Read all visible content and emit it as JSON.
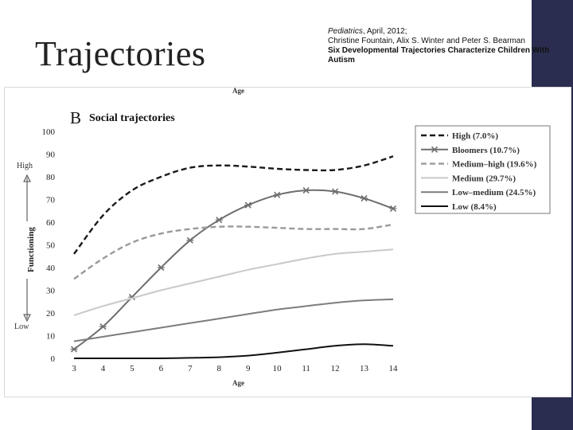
{
  "slide": {
    "title": "Trajectories",
    "citation": {
      "journal": "Pediatrics",
      "date": ", April, 2012;",
      "authors": "Christine Fountain, Alix S. Winter and Peter S. Bearman",
      "paper_title": "Six Developmental Trajectories Characterize Children With Autism"
    }
  },
  "chart_data": {
    "type": "line",
    "panel_letter": "B",
    "title": "Social trajectories",
    "top_axis_label": "Age",
    "xlabel": "Age",
    "ylabel": "Functioning",
    "y_high_label": "High",
    "y_low_label": "Low",
    "x": [
      3,
      4,
      5,
      6,
      7,
      8,
      9,
      10,
      11,
      12,
      13,
      14
    ],
    "xlim": [
      3,
      14
    ],
    "ylim": [
      0,
      100
    ],
    "yticks": [
      0,
      10,
      20,
      30,
      40,
      50,
      60,
      70,
      80,
      90,
      100
    ],
    "grid": false,
    "legend_position": "top-right",
    "series": [
      {
        "name": "High (7.0%)",
        "color": "#1a1a1a",
        "style": "dashed",
        "markers": false,
        "values": [
          46,
          63,
          74,
          80,
          84,
          85,
          84.5,
          83.5,
          83,
          83,
          85,
          89
        ]
      },
      {
        "name": "Bloomers (10.7%)",
        "color": "#6e6e6e",
        "style": "solid",
        "markers": true,
        "values": [
          4,
          14,
          27,
          40,
          52,
          61,
          67.5,
          72,
          74,
          73.5,
          70.5,
          66
        ]
      },
      {
        "name": "Medium–high (19.6%)",
        "color": "#9a9a9a",
        "style": "dashed",
        "markers": false,
        "values": [
          35,
          44,
          51,
          55,
          57,
          58,
          58,
          57.5,
          57,
          57,
          57,
          59
        ]
      },
      {
        "name": "Medium (29.7%)",
        "color": "#c9c9c9",
        "style": "solid",
        "markers": false,
        "values": [
          19,
          23,
          26.5,
          30,
          33,
          36,
          39,
          41.5,
          44,
          46,
          47,
          48
        ]
      },
      {
        "name": "Low–medium (24.5%)",
        "color": "#7d7d7d",
        "style": "solid",
        "markers": false,
        "values": [
          7.5,
          9.5,
          11.5,
          13.5,
          15.5,
          17.5,
          19.5,
          21.5,
          23,
          24.5,
          25.5,
          26
        ]
      },
      {
        "name": "Low (8.4%)",
        "color": "#111111",
        "style": "solid",
        "markers": false,
        "values": [
          0,
          0,
          0,
          0,
          0.2,
          0.5,
          1.2,
          2.5,
          4,
          5.5,
          6.2,
          5.5
        ]
      }
    ]
  }
}
